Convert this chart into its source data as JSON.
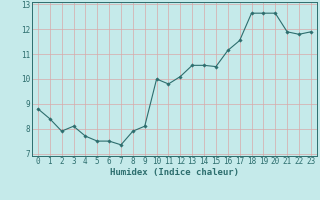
{
  "x": [
    0,
    1,
    2,
    3,
    4,
    5,
    6,
    7,
    8,
    9,
    10,
    11,
    12,
    13,
    14,
    15,
    16,
    17,
    18,
    19,
    20,
    21,
    22,
    23
  ],
  "y": [
    8.8,
    8.4,
    7.9,
    8.1,
    7.7,
    7.5,
    7.5,
    7.35,
    7.9,
    8.1,
    10.0,
    9.8,
    10.1,
    10.55,
    10.55,
    10.5,
    11.15,
    11.55,
    12.65,
    12.65,
    12.65,
    11.9,
    11.8,
    11.9
  ],
  "line_color": "#2d6e6e",
  "marker": "D",
  "marker_size": 1.8,
  "linewidth": 0.8,
  "background_color": "#c5eaea",
  "grid_color": "#d8a8a8",
  "xlabel": "Humidex (Indice chaleur)",
  "xlim": [
    -0.5,
    23.5
  ],
  "ylim": [
    6.9,
    13.1
  ],
  "yticks": [
    7,
    8,
    9,
    10,
    11,
    12,
    13
  ],
  "xticks": [
    0,
    1,
    2,
    3,
    4,
    5,
    6,
    7,
    8,
    9,
    10,
    11,
    12,
    13,
    14,
    15,
    16,
    17,
    18,
    19,
    20,
    21,
    22,
    23
  ],
  "tick_fontsize": 5.5,
  "xlabel_fontsize": 6.5,
  "tick_color": "#2d6e6e",
  "spine_color": "#2d6e6e"
}
